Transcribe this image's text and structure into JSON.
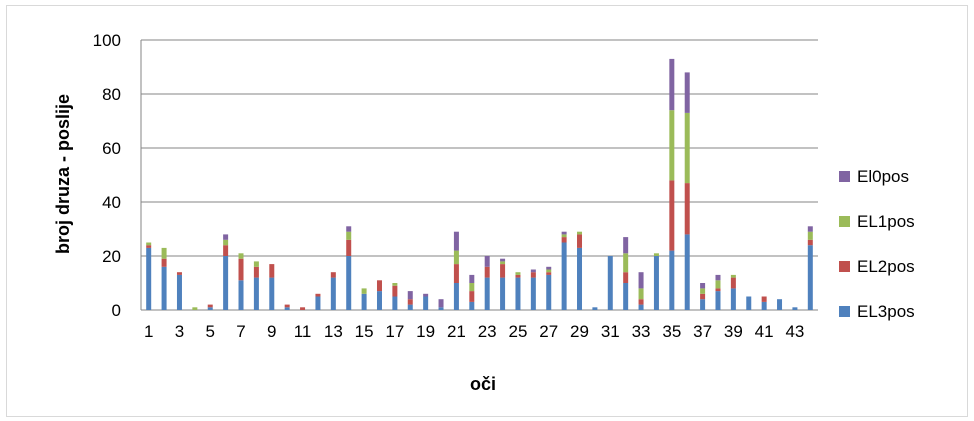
{
  "chart_data": {
    "type": "bar",
    "stacked": true,
    "title": "",
    "xlabel": "oči",
    "ylabel": "broj druza - poslije",
    "ylim": [
      0,
      100
    ],
    "y_ticks": [
      0,
      20,
      40,
      60,
      80,
      100
    ],
    "grid": "horizontal",
    "legend_position": "right",
    "categories": [
      1,
      2,
      3,
      4,
      5,
      6,
      7,
      8,
      9,
      10,
      11,
      12,
      13,
      14,
      15,
      16,
      17,
      18,
      19,
      20,
      21,
      22,
      23,
      24,
      25,
      26,
      27,
      28,
      29,
      30,
      31,
      32,
      33,
      34,
      35,
      36,
      37,
      38,
      39,
      40,
      41,
      42,
      43,
      44
    ],
    "x_tick_labels": [
      "1",
      "3",
      "5",
      "7",
      "9",
      "11",
      "13",
      "15",
      "17",
      "19",
      "21",
      "23",
      "25",
      "27",
      "29",
      "31",
      "33",
      "35",
      "37",
      "39",
      "41",
      "43"
    ],
    "series": [
      {
        "name": "EL3pos",
        "color": "#4f81bd",
        "values": [
          23,
          16,
          13,
          0,
          1,
          20,
          11,
          12,
          12,
          1,
          0,
          5,
          12,
          20,
          6,
          7,
          5,
          2,
          5,
          1,
          10,
          3,
          12,
          12,
          12,
          12,
          13,
          25,
          23,
          1,
          20,
          10,
          2,
          20,
          22,
          28,
          4,
          7,
          8,
          5,
          3,
          4,
          1,
          24
        ]
      },
      {
        "name": "EL2pos",
        "color": "#c0504d",
        "values": [
          1,
          3,
          1,
          0,
          1,
          4,
          8,
          4,
          5,
          1,
          1,
          1,
          2,
          6,
          0,
          4,
          4,
          2,
          0,
          0,
          7,
          4,
          4,
          5,
          1,
          2,
          1,
          2,
          5,
          0,
          0,
          4,
          2,
          0,
          26,
          19,
          2,
          1,
          4,
          0,
          2,
          0,
          0,
          2
        ]
      },
      {
        "name": "EL1pos",
        "color": "#9bbb59",
        "values": [
          1,
          4,
          0,
          1,
          0,
          2,
          2,
          2,
          0,
          0,
          0,
          0,
          0,
          3,
          2,
          0,
          1,
          0,
          0,
          0,
          5,
          3,
          0,
          1,
          1,
          0,
          1,
          1,
          1,
          0,
          0,
          7,
          4,
          1,
          26,
          26,
          2,
          3,
          1,
          0,
          0,
          0,
          0,
          3
        ]
      },
      {
        "name": "El0pos",
        "color": "#8064a2",
        "values": [
          0,
          0,
          0,
          0,
          0,
          2,
          0,
          0,
          0,
          0,
          0,
          0,
          0,
          2,
          0,
          0,
          0,
          3,
          1,
          3,
          7,
          3,
          4,
          1,
          0,
          1,
          1,
          1,
          0,
          0,
          0,
          6,
          6,
          0,
          19,
          15,
          2,
          2,
          0,
          0,
          0,
          0,
          0,
          2
        ]
      }
    ]
  }
}
